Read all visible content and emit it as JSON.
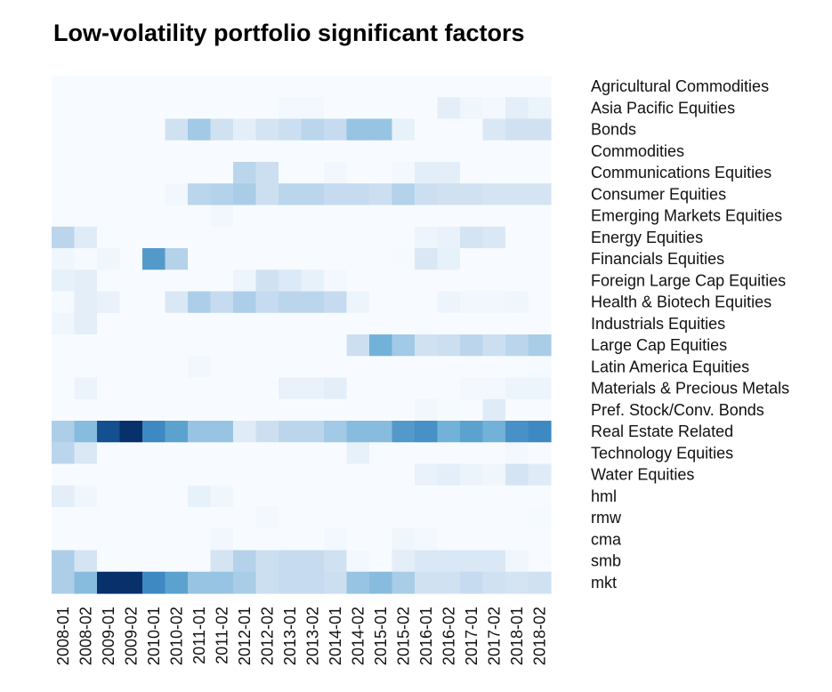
{
  "chart_data": {
    "type": "heatmap",
    "title": "Low-volatility portfolio significant factors",
    "xlabel": "",
    "ylabel": "",
    "legend": "none",
    "color_scale": {
      "low": "#f7fbff",
      "high": "#08306b",
      "range": [
        0,
        1
      ]
    },
    "columns": [
      "2008-01",
      "2008-02",
      "2009-01",
      "2009-02",
      "2010-01",
      "2010-02",
      "2011-01",
      "2011-02",
      "2012-01",
      "2012-02",
      "2013-01",
      "2013-02",
      "2014-01",
      "2014-02",
      "2015-01",
      "2015-02",
      "2016-01",
      "2016-02",
      "2017-01",
      "2017-02",
      "2018-01",
      "2018-02"
    ],
    "rows": [
      {
        "name": "Agricultural Commodities",
        "values": [
          0,
          0,
          0,
          0,
          0,
          0,
          0,
          0,
          0,
          0,
          0,
          0,
          0,
          0,
          0,
          0,
          0,
          0,
          0,
          0,
          0,
          0
        ]
      },
      {
        "name": "Asia Pacific Equities",
        "values": [
          0,
          0,
          0,
          0,
          0,
          0,
          0,
          0,
          0,
          0,
          0.02,
          0.02,
          0,
          0,
          0,
          0,
          0,
          0.1,
          0.04,
          0.02,
          0.1,
          0.06
        ]
      },
      {
        "name": "Bonds",
        "values": [
          0,
          0,
          0,
          0,
          0,
          0.2,
          0.35,
          0.2,
          0.1,
          0.18,
          0.22,
          0.28,
          0.25,
          0.38,
          0.38,
          0.08,
          0,
          0,
          0,
          0.15,
          0.2,
          0.2
        ]
      },
      {
        "name": "Commodities",
        "values": [
          0,
          0,
          0,
          0,
          0,
          0,
          0,
          0,
          0,
          0,
          0,
          0,
          0,
          0,
          0,
          0,
          0,
          0,
          0,
          0,
          0,
          0
        ]
      },
      {
        "name": "Communications Equities",
        "values": [
          0,
          0,
          0,
          0,
          0,
          0,
          0,
          0,
          0.28,
          0.22,
          0,
          0,
          0.03,
          0,
          0,
          0.02,
          0.1,
          0.1,
          0,
          0,
          0,
          0
        ]
      },
      {
        "name": "Consumer Equities",
        "values": [
          0,
          0,
          0,
          0,
          0,
          0.03,
          0.28,
          0.3,
          0.33,
          0.22,
          0.28,
          0.28,
          0.25,
          0.25,
          0.22,
          0.3,
          0.22,
          0.2,
          0.2,
          0.18,
          0.18,
          0.18
        ]
      },
      {
        "name": "Emerging Markets Equities",
        "values": [
          0,
          0,
          0,
          0,
          0,
          0,
          0,
          0.03,
          0,
          0,
          0,
          0,
          0,
          0,
          0,
          0,
          0,
          0,
          0,
          0,
          0,
          0
        ]
      },
      {
        "name": "Energy Equities",
        "values": [
          0.28,
          0.12,
          0,
          0,
          0,
          0,
          0,
          0,
          0,
          0,
          0,
          0,
          0,
          0,
          0,
          0,
          0.05,
          0.07,
          0.18,
          0.15,
          0,
          0
        ]
      },
      {
        "name": "Financials Equities",
        "values": [
          0.04,
          0.01,
          0.04,
          0,
          0.58,
          0.3,
          0,
          0,
          0,
          0,
          0,
          0,
          0,
          0,
          0,
          0.01,
          0.15,
          0.08,
          0,
          0,
          0,
          0
        ]
      },
      {
        "name": "Foreign Large Cap Equities",
        "values": [
          0.08,
          0.1,
          0,
          0,
          0,
          0,
          0,
          0,
          0.05,
          0.2,
          0.14,
          0.08,
          0.02,
          0,
          0,
          0,
          0,
          0,
          0,
          0,
          0,
          0
        ]
      },
      {
        "name": "Health & Biotech Equities",
        "values": [
          0.01,
          0.1,
          0.07,
          0,
          0,
          0.15,
          0.32,
          0.25,
          0.32,
          0.25,
          0.28,
          0.28,
          0.25,
          0.05,
          0,
          0,
          0,
          0.05,
          0.03,
          0.03,
          0.04,
          0
        ]
      },
      {
        "name": "Industrials Equities",
        "values": [
          0.04,
          0.1,
          0,
          0,
          0,
          0,
          0,
          0,
          0,
          0,
          0,
          0,
          0,
          0,
          0,
          0,
          0,
          0,
          0,
          0,
          0,
          0
        ]
      },
      {
        "name": "Large Cap Equities",
        "values": [
          0,
          0,
          0,
          0,
          0,
          0,
          0,
          0,
          0,
          0,
          0,
          0,
          0,
          0.22,
          0.48,
          0.35,
          0.2,
          0.22,
          0.28,
          0.22,
          0.28,
          0.33
        ]
      },
      {
        "name": "Latin America Equities",
        "values": [
          0,
          0,
          0,
          0,
          0,
          0,
          0.03,
          0,
          0,
          0,
          0,
          0,
          0,
          0,
          0,
          0,
          0,
          0,
          0,
          0,
          0,
          0.01
        ]
      },
      {
        "name": "Materials & Precious Metals",
        "values": [
          0,
          0.06,
          0,
          0,
          0,
          0,
          0,
          0,
          0,
          0,
          0.07,
          0.07,
          0.1,
          0,
          0,
          0,
          0,
          0,
          0.02,
          0.02,
          0.05,
          0.05
        ]
      },
      {
        "name": "Pref. Stock/Conv. Bonds",
        "values": [
          0,
          0,
          0,
          0,
          0,
          0,
          0,
          0,
          0,
          0,
          0,
          0,
          0,
          0,
          0,
          0,
          0.03,
          0.01,
          0,
          0.12,
          0,
          0
        ]
      },
      {
        "name": "Real Estate Related",
        "values": [
          0.32,
          0.42,
          0.88,
          1.0,
          0.65,
          0.55,
          0.38,
          0.38,
          0.12,
          0.22,
          0.28,
          0.28,
          0.35,
          0.42,
          0.42,
          0.58,
          0.62,
          0.48,
          0.55,
          0.48,
          0.62,
          0.65
        ]
      },
      {
        "name": "Technology Equities",
        "values": [
          0.28,
          0.15,
          0,
          0,
          0,
          0,
          0,
          0,
          0,
          0,
          0,
          0,
          0,
          0.08,
          0,
          0,
          0,
          0,
          0,
          0,
          0.02,
          0
        ]
      },
      {
        "name": "Water Equities",
        "values": [
          0,
          0,
          0,
          0,
          0,
          0,
          0,
          0,
          0,
          0,
          0,
          0,
          0,
          0,
          0,
          0,
          0.07,
          0.1,
          0.06,
          0.04,
          0.18,
          0.12
        ]
      },
      {
        "name": "hml",
        "values": [
          0.1,
          0.04,
          0,
          0,
          0,
          0,
          0.08,
          0.04,
          0,
          0,
          0,
          0,
          0,
          0,
          0,
          0,
          0,
          0,
          0,
          0,
          0,
          0
        ]
      },
      {
        "name": "rmw",
        "values": [
          0,
          0,
          0,
          0,
          0,
          0,
          0,
          0,
          0,
          0.02,
          0,
          0,
          0,
          0,
          0,
          0,
          0,
          0,
          0,
          0,
          0,
          0.01
        ]
      },
      {
        "name": "cma",
        "values": [
          0,
          0,
          0,
          0,
          0,
          0,
          0,
          0.03,
          0,
          0,
          0,
          0,
          0.02,
          0,
          0,
          0.04,
          0.02,
          0,
          0,
          0,
          0,
          0
        ]
      },
      {
        "name": "smb",
        "values": [
          0.32,
          0.18,
          0,
          0,
          0,
          0,
          0,
          0.18,
          0.3,
          0.22,
          0.25,
          0.25,
          0.2,
          0.02,
          0,
          0.1,
          0.15,
          0.15,
          0.15,
          0.15,
          0.04,
          0
        ]
      },
      {
        "name": "mkt",
        "values": [
          0.32,
          0.42,
          1.0,
          1.0,
          0.65,
          0.55,
          0.38,
          0.38,
          0.33,
          0.22,
          0.25,
          0.25,
          0.22,
          0.38,
          0.42,
          0.33,
          0.2,
          0.2,
          0.25,
          0.2,
          0.18,
          0.2
        ]
      }
    ]
  }
}
